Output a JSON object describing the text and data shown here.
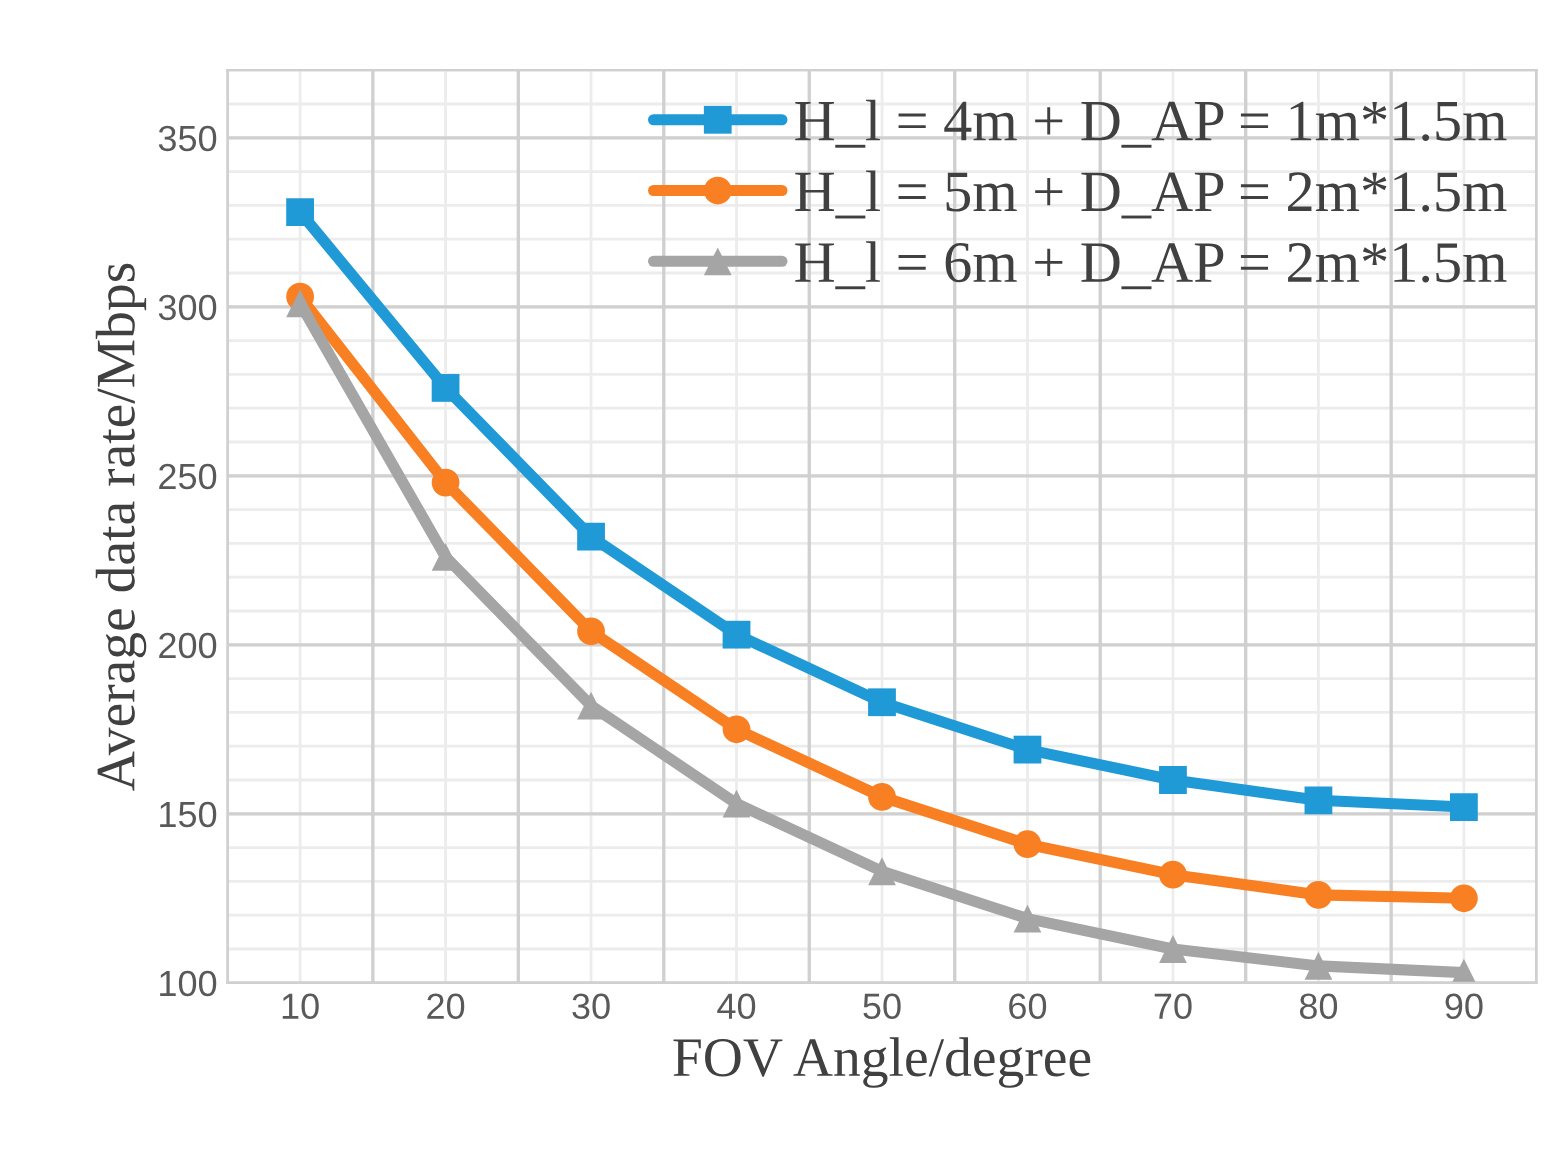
{
  "chart_data": {
    "type": "line",
    "xlabel": "FOV Angle/degree",
    "ylabel": "Average data rate/Mbps",
    "categories": [
      "10",
      "20",
      "30",
      "40",
      "50",
      "60",
      "70",
      "80",
      "90"
    ],
    "series": [
      {
        "name": "H_l = 4m + D_AP = 1m*1.5m",
        "color": "#1f9ad6",
        "marker": "square",
        "values": [
          328,
          276,
          232,
          203,
          183,
          169,
          160,
          154,
          152
        ]
      },
      {
        "name": "H_l = 5m + D_AP = 2m*1.5m",
        "color": "#f87f22",
        "marker": "circle",
        "values": [
          303,
          248,
          204,
          175,
          155,
          141,
          132,
          126,
          125
        ]
      },
      {
        "name": "H_l = 6m + D_AP = 2m*1.5m",
        "color": "#a5a5a5",
        "marker": "triangle",
        "values": [
          301,
          226,
          182,
          153,
          133,
          119,
          110,
          105,
          103
        ]
      }
    ],
    "ylim": [
      100,
      370
    ],
    "yticks": [
      100,
      150,
      200,
      250,
      300,
      350
    ],
    "grid": true,
    "legend": "top right"
  }
}
